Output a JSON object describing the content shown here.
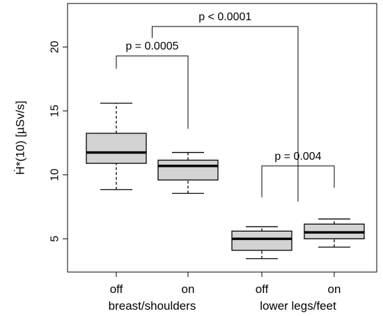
{
  "chart_data": {
    "type": "boxplot",
    "title": "",
    "ylabel": "Ḣ*(10) [µSv/s]",
    "ylim": [
      2.4,
      23.4
    ],
    "yticks": [
      5,
      10,
      15,
      20
    ],
    "grid": false,
    "categories": [
      "off",
      "on",
      "off",
      "on"
    ],
    "groups": [
      {
        "label": "breast/shoulders",
        "members": [
          0,
          1
        ]
      },
      {
        "label": "lower legs/feet",
        "members": [
          2,
          3
        ]
      }
    ],
    "boxes": [
      {
        "label": "off",
        "min": 8.85,
        "q1": 10.9,
        "median": 11.75,
        "q3": 13.25,
        "max": 15.6
      },
      {
        "label": "on",
        "min": 8.55,
        "q1": 9.6,
        "median": 10.7,
        "q3": 11.15,
        "max": 11.75
      },
      {
        "label": "off",
        "min": 3.45,
        "q1": 4.1,
        "median": 5.0,
        "q3": 5.6,
        "max": 5.95
      },
      {
        "label": "on",
        "min": 4.35,
        "q1": 5.0,
        "median": 5.5,
        "q3": 6.15,
        "max": 6.55
      }
    ],
    "box_color": "#d3d3d3",
    "annotations": [
      {
        "text": "p = 0.0005",
        "from": 0,
        "to": 1,
        "bar_y": 19.3,
        "left_foot": 18.3,
        "right_foot": 13.6
      },
      {
        "text": "p < 0.0001",
        "from": 0.5,
        "to": 2.5,
        "bar_y": 21.6,
        "left_foot": 20.7,
        "right_foot": 7.9
      },
      {
        "text": "p = 0.004",
        "from": 2,
        "to": 3,
        "bar_y": 10.7,
        "left_foot": 8.25,
        "right_foot": 9.0
      }
    ]
  }
}
